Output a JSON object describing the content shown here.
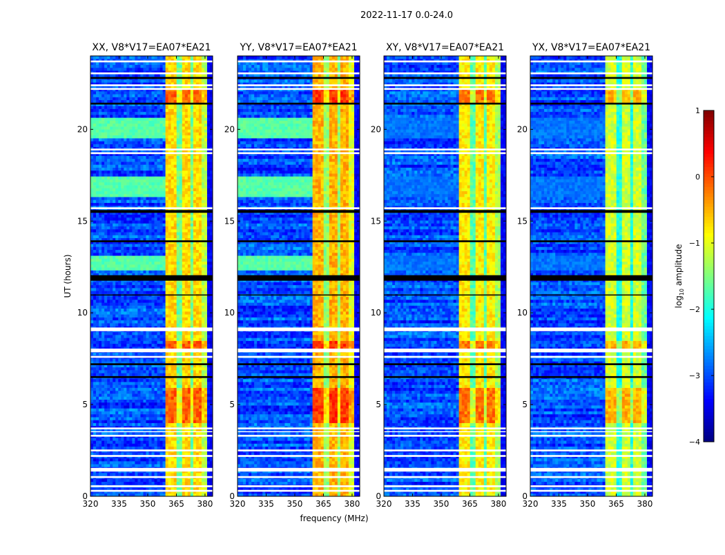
{
  "chart_data": {
    "type": "heatmap",
    "title": "2022-11-17 0.0-24.0",
    "xlabel": "frequency (MHz)",
    "ylabel": "UT (hours)",
    "xlim": [
      320,
      384
    ],
    "ylim": [
      0,
      24
    ],
    "xticks": [
      "320",
      "335",
      "350",
      "365",
      "380"
    ],
    "xtick_values": [
      320,
      335,
      350,
      365,
      380
    ],
    "yticks": [
      "0",
      "5",
      "10",
      "15",
      "20"
    ],
    "ytick_values": [
      0,
      5,
      10,
      15,
      20
    ],
    "colormap": "jet",
    "colorbar": {
      "label_main": "log",
      "label_sub": "10",
      "label_rest": " amplitude",
      "range": [
        -4,
        1
      ],
      "ticks": [
        "1",
        "0",
        "−1",
        "−2",
        "−3",
        "−4"
      ],
      "tick_values": [
        1,
        0,
        -1,
        -2,
        -3,
        -4
      ]
    },
    "panels": [
      {
        "title": "XX, V8*V17=EA07*EA21",
        "band_level": -0.7,
        "quiet_boost": 1.3
      },
      {
        "title": "YY, V8*V17=EA07*EA21",
        "band_level": -0.5,
        "quiet_boost": 1.3
      },
      {
        "title": "XY, V8*V17=EA07*EA21",
        "band_level": -0.8,
        "quiet_boost": 0.2
      },
      {
        "title": "YX, V8*V17=EA07*EA21",
        "band_level": -1.1,
        "quiet_boost": 0.2
      }
    ],
    "background_level": -3.0,
    "rfi_band_mhz": [
      360,
      381
    ],
    "elevated_time_ranges_hours": [
      [
        12.3,
        13.2
      ],
      [
        16.3,
        17.5
      ],
      [
        19.5,
        20.7
      ]
    ],
    "bright_time_ranges_hours": [
      [
        21.4,
        22.2
      ],
      [
        8.0,
        8.5
      ],
      [
        4.0,
        6.0
      ]
    ],
    "flagged_white_hours": [
      [
        0.25,
        0.35
      ],
      [
        0.5,
        0.6
      ],
      [
        1.0,
        1.1
      ],
      [
        1.35,
        1.55
      ],
      [
        2.15,
        2.25
      ],
      [
        2.45,
        2.55
      ],
      [
        3.25,
        3.35
      ],
      [
        3.5,
        3.55
      ],
      [
        3.65,
        3.75
      ],
      [
        7.55,
        7.65
      ],
      [
        7.85,
        8.05
      ],
      [
        9.0,
        9.2
      ],
      [
        15.65,
        15.75
      ],
      [
        18.65,
        18.75
      ],
      [
        18.85,
        18.95
      ],
      [
        22.15,
        22.25
      ],
      [
        22.35,
        22.45
      ],
      [
        23.0,
        23.1
      ],
      [
        23.65,
        23.75
      ]
    ],
    "flagged_black_hours": [
      [
        11.75,
        12.05
      ],
      [
        13.85,
        13.95
      ],
      [
        15.45,
        15.6
      ],
      [
        21.35,
        21.45
      ],
      [
        22.75,
        22.85
      ],
      [
        6.45,
        6.55
      ],
      [
        7.15,
        7.25
      ],
      [
        10.95,
        11.0
      ]
    ]
  }
}
